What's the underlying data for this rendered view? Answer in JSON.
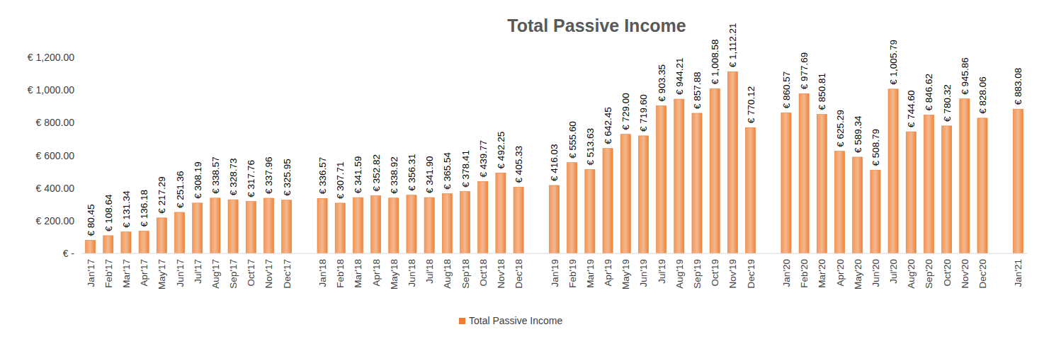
{
  "chart_data": {
    "type": "bar",
    "title": "Total Passive Income",
    "categories": [
      "Jan'17",
      "Feb'17",
      "Mar'17",
      "Apr'17",
      "May'17",
      "Jun'17",
      "Jul'17",
      "Aug'17",
      "Sep'17",
      "Oct'17",
      "Nov'17",
      "Dec'17",
      null,
      "Jan'18",
      "Feb'18",
      "Mar'18",
      "Apr'18",
      "May'18",
      "Jun'18",
      "Jul'18",
      "Aug'18",
      "Sep'18",
      "Oct'18",
      "Nov'18",
      "Dec'18",
      null,
      "Jan'19",
      "Feb'19",
      "Mar'19",
      "Apr'19",
      "May'19",
      "Jun'19",
      "Jul'19",
      "Aug'19",
      "Sep'19",
      "Oct'19",
      "Nov'19",
      "Dec'19",
      null,
      "Jan'20",
      "Feb'20",
      "Mar'20",
      "Apr'20",
      "May'20",
      "Jun'20",
      "Jul'20",
      "Aug'20",
      "Sep'20",
      "Oct'20",
      "Nov'20",
      "Dec'20",
      null,
      "Jan'21"
    ],
    "series": [
      {
        "name": "Total Passive Income",
        "color": "#ed7d31",
        "values": [
          80.45,
          108.64,
          131.34,
          136.18,
          217.29,
          251.36,
          308.19,
          338.57,
          328.73,
          317.76,
          337.96,
          325.95,
          null,
          336.57,
          307.71,
          341.59,
          352.82,
          338.92,
          356.31,
          341.9,
          365.54,
          378.41,
          439.77,
          492.25,
          405.33,
          null,
          416.03,
          555.6,
          513.63,
          642.45,
          729.0,
          719.6,
          903.35,
          944.21,
          857.88,
          1008.58,
          1112.21,
          770.12,
          null,
          860.57,
          977.69,
          850.81,
          625.29,
          589.34,
          508.79,
          1005.79,
          744.6,
          846.62,
          780.32,
          945.86,
          828.06,
          null,
          883.08
        ],
        "value_labels": [
          "€ 80.45",
          "€ 108.64",
          "€ 131.34",
          "€ 136.18",
          "€ 217.29",
          "€ 251.36",
          "€ 308.19",
          "€ 338.57",
          "€ 328.73",
          "€ 317.76",
          "€ 337.96",
          "€ 325.95",
          null,
          "€ 336.57",
          "€ 307.71",
          "€ 341.59",
          "€ 352.82",
          "€ 338.92",
          "€ 356.31",
          "€ 341.90",
          "€ 365.54",
          "€ 378.41",
          "€ 439.77",
          "€ 492.25",
          "€ 405.33",
          null,
          "€ 416.03",
          "€ 555.60",
          "€ 513.63",
          "€ 642.45",
          "€ 729.00",
          "€ 719.60",
          "€ 903.35",
          "€ 944.21",
          "€ 857.88",
          "€ 1,008.58",
          "€ 1,112.21",
          "€ 770.12",
          null,
          "€ 860.57",
          "€ 977.69",
          "€ 850.81",
          "€ 625.29",
          "€ 589.34",
          "€ 508.79",
          "€ 1,005.79",
          "€ 744.60",
          "€ 846.62",
          "€ 780.32",
          "€ 945.86",
          "€ 828.06",
          null,
          "€ 883.08"
        ]
      }
    ],
    "ylim": [
      0,
      1200
    ],
    "yticks": [
      {
        "value": 0,
        "label": "€ -"
      },
      {
        "value": 200,
        "label": "€ 200.00"
      },
      {
        "value": 400,
        "label": "€ 400.00"
      },
      {
        "value": 600,
        "label": "€ 600.00"
      },
      {
        "value": 800,
        "label": "€ 800.00"
      },
      {
        "value": 1000,
        "label": "€ 1,000.00"
      },
      {
        "value": 1200,
        "label": "€ 1,200.00"
      }
    ],
    "grid": false,
    "data_labels": true,
    "legend": "bottom"
  }
}
